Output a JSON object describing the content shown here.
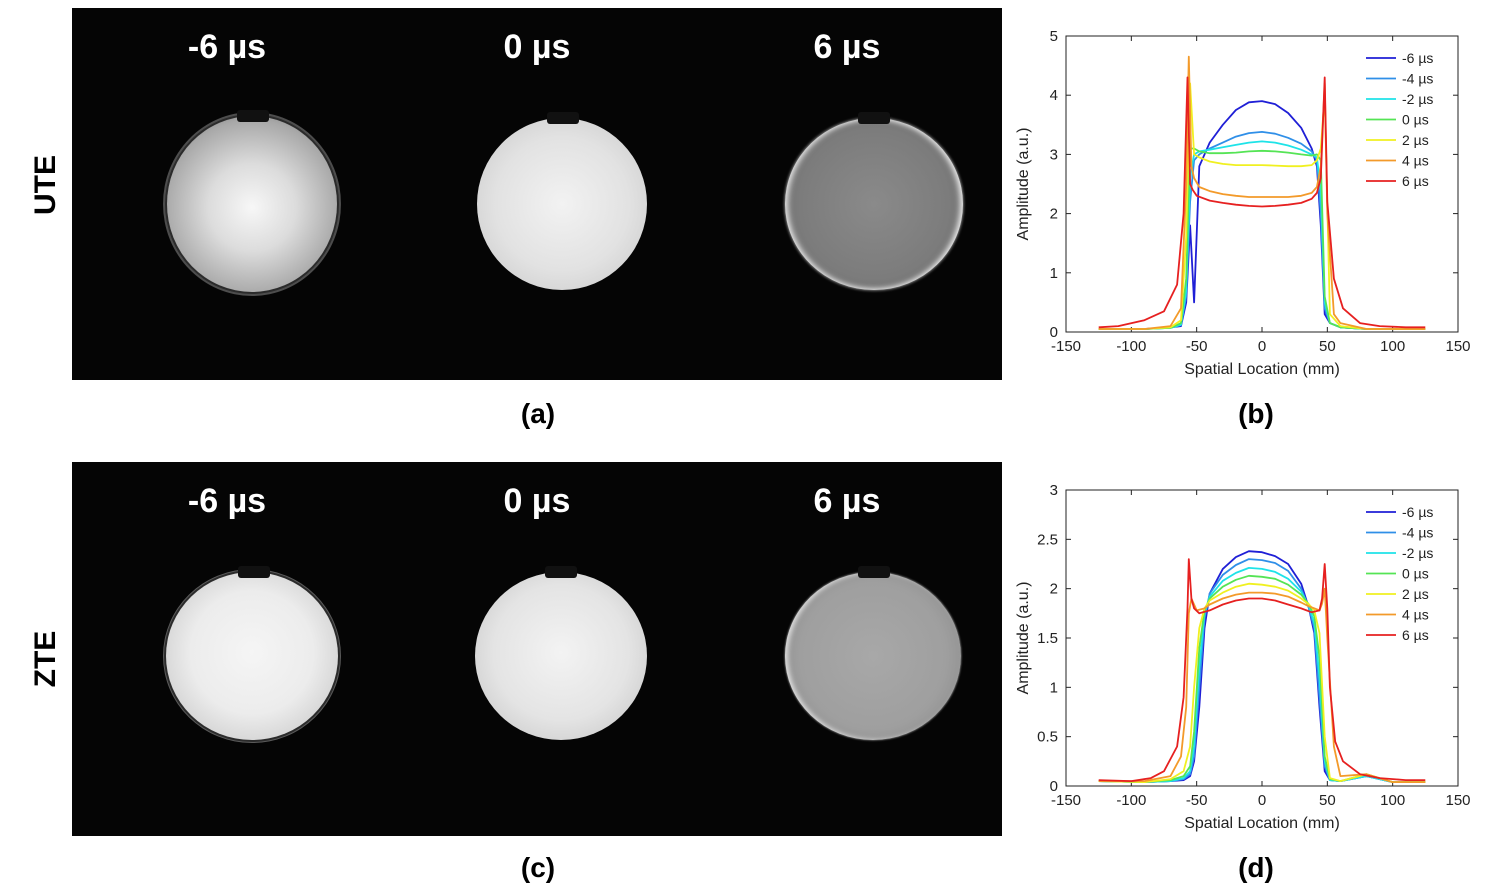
{
  "figure": {
    "rows": [
      {
        "label": "UTE",
        "caption": "(a)",
        "tiles": [
          {
            "label": "-6 µs"
          },
          {
            "label": "0 µs"
          },
          {
            "label": "6 µs"
          }
        ]
      },
      {
        "label": "ZTE",
        "caption": "(c)",
        "tiles": [
          {
            "label": "-6 µs"
          },
          {
            "label": "0 µs"
          },
          {
            "label": "6 µs"
          }
        ]
      }
    ],
    "chart_captions": [
      "(b)",
      "(d)"
    ]
  },
  "colors": {
    "-6": "#1f1fd6",
    "-4": "#2f8fe8",
    "-2": "#1ee3e8",
    "0": "#55e455",
    "2": "#f0f020",
    "4": "#f39a2a",
    "6": "#e62020"
  },
  "chart_data": [
    {
      "type": "line",
      "xlabel": "Spatial Location (mm)",
      "ylabel": "Amplitude (a.u.)",
      "xlim": [
        -150,
        150
      ],
      "ylim": [
        0,
        5
      ],
      "xticks": [
        -150,
        -100,
        -50,
        0,
        50,
        100,
        150
      ],
      "yticks": [
        0,
        1,
        2,
        3,
        4,
        5
      ],
      "legend": "top-right",
      "series": [
        {
          "name": "-6 µs",
          "color": "#1f1fd6",
          "x": [
            -125,
            -90,
            -70,
            -62,
            -58,
            -55,
            -52,
            -48,
            -40,
            -30,
            -20,
            -10,
            0,
            10,
            20,
            30,
            38,
            42,
            45,
            48,
            52,
            60,
            80,
            100,
            125
          ],
          "y": [
            0.05,
            0.05,
            0.08,
            0.1,
            0.5,
            1.8,
            0.5,
            2.8,
            3.2,
            3.5,
            3.75,
            3.88,
            3.9,
            3.85,
            3.7,
            3.45,
            3.1,
            2.8,
            1.8,
            0.3,
            0.15,
            0.08,
            0.05,
            0.05,
            0.05
          ]
        },
        {
          "name": "-4 µs",
          "color": "#2f8fe8",
          "x": [
            -125,
            -90,
            -70,
            -62,
            -58,
            -55,
            -52,
            -48,
            -40,
            -30,
            -20,
            -10,
            0,
            10,
            20,
            30,
            38,
            42,
            45,
            48,
            52,
            60,
            80,
            100,
            125
          ],
          "y": [
            0.05,
            0.05,
            0.07,
            0.12,
            0.6,
            2.2,
            2.9,
            3.0,
            3.1,
            3.2,
            3.3,
            3.36,
            3.38,
            3.35,
            3.28,
            3.18,
            3.05,
            2.9,
            2.0,
            0.4,
            0.15,
            0.08,
            0.05,
            0.05,
            0.05
          ]
        },
        {
          "name": "-2 µs",
          "color": "#1ee3e8",
          "x": [
            -125,
            -90,
            -70,
            -62,
            -58,
            -55,
            -52,
            -48,
            -40,
            -30,
            -20,
            -10,
            0,
            10,
            20,
            30,
            38,
            42,
            45,
            48,
            52,
            60,
            80,
            100,
            125
          ],
          "y": [
            0.05,
            0.05,
            0.07,
            0.12,
            0.7,
            2.6,
            3.0,
            3.05,
            3.08,
            3.12,
            3.16,
            3.2,
            3.22,
            3.2,
            3.15,
            3.08,
            3.0,
            2.95,
            2.4,
            0.5,
            0.15,
            0.08,
            0.05,
            0.05,
            0.05
          ]
        },
        {
          "name": "0 µs",
          "color": "#55e455",
          "x": [
            -125,
            -90,
            -70,
            -62,
            -58,
            -55,
            -52,
            -48,
            -40,
            -30,
            -20,
            -10,
            0,
            10,
            20,
            30,
            38,
            42,
            45,
            48,
            52,
            60,
            80,
            100,
            125
          ],
          "y": [
            0.05,
            0.05,
            0.07,
            0.15,
            0.9,
            3.1,
            3.1,
            3.05,
            3.02,
            3.02,
            3.03,
            3.05,
            3.06,
            3.05,
            3.03,
            3.0,
            2.98,
            3.0,
            2.9,
            0.6,
            0.15,
            0.08,
            0.05,
            0.05,
            0.05
          ]
        },
        {
          "name": "2 µs",
          "color": "#f0f020",
          "x": [
            -125,
            -90,
            -70,
            -62,
            -58,
            -55,
            -52,
            -48,
            -40,
            -30,
            -20,
            -10,
            0,
            10,
            20,
            30,
            38,
            42,
            45,
            48,
            52,
            60,
            80,
            100,
            125
          ],
          "y": [
            0.05,
            0.05,
            0.08,
            0.2,
            1.6,
            4.2,
            3.0,
            2.95,
            2.88,
            2.84,
            2.82,
            2.82,
            2.82,
            2.81,
            2.8,
            2.8,
            2.82,
            2.9,
            3.1,
            4.0,
            0.3,
            0.1,
            0.05,
            0.05,
            0.05
          ]
        },
        {
          "name": "4 µs",
          "color": "#f39a2a",
          "x": [
            -125,
            -90,
            -70,
            -62,
            -58,
            -56,
            -54,
            -52,
            -48,
            -40,
            -30,
            -20,
            -10,
            0,
            10,
            20,
            30,
            38,
            42,
            45,
            48,
            50,
            55,
            60,
            80,
            100,
            125
          ],
          "y": [
            0.05,
            0.05,
            0.1,
            0.4,
            2.5,
            4.65,
            2.8,
            2.6,
            2.45,
            2.38,
            2.33,
            2.3,
            2.28,
            2.28,
            2.28,
            2.28,
            2.3,
            2.35,
            2.45,
            2.8,
            4.2,
            2.0,
            0.3,
            0.15,
            0.05,
            0.05,
            0.05
          ]
        },
        {
          "name": "6 µs",
          "color": "#e62020",
          "x": [
            -125,
            -110,
            -90,
            -75,
            -65,
            -60,
            -57,
            -55,
            -53,
            -50,
            -40,
            -30,
            -20,
            -10,
            0,
            10,
            20,
            30,
            38,
            42,
            45,
            48,
            50,
            55,
            62,
            75,
            90,
            110,
            125
          ],
          "y": [
            0.08,
            0.1,
            0.2,
            0.35,
            0.8,
            2.0,
            4.3,
            2.5,
            2.4,
            2.3,
            2.22,
            2.18,
            2.15,
            2.13,
            2.12,
            2.13,
            2.15,
            2.18,
            2.25,
            2.35,
            2.6,
            4.3,
            2.2,
            0.9,
            0.4,
            0.15,
            0.1,
            0.08,
            0.08
          ]
        }
      ]
    },
    {
      "type": "line",
      "xlabel": "Spatial Location (mm)",
      "ylabel": "Amplitude (a.u.)",
      "xlim": [
        -150,
        150
      ],
      "ylim": [
        0,
        3
      ],
      "xticks": [
        -150,
        -100,
        -50,
        0,
        50,
        100,
        150
      ],
      "yticks": [
        0,
        0.5,
        1,
        1.5,
        2,
        2.5,
        3
      ],
      "legend": "top-right",
      "series": [
        {
          "name": "-6 µs",
          "color": "#1f1fd6",
          "x": [
            -125,
            -90,
            -70,
            -60,
            -55,
            -52,
            -48,
            -44,
            -40,
            -30,
            -20,
            -10,
            0,
            10,
            20,
            30,
            36,
            40,
            44,
            48,
            52,
            60,
            80,
            100,
            125
          ],
          "y": [
            0.05,
            0.04,
            0.05,
            0.06,
            0.1,
            0.25,
            0.8,
            1.6,
            1.95,
            2.2,
            2.32,
            2.38,
            2.37,
            2.33,
            2.25,
            2.05,
            1.8,
            1.55,
            0.8,
            0.15,
            0.06,
            0.05,
            0.1,
            0.04,
            0.04
          ]
        },
        {
          "name": "-4 µs",
          "color": "#2f8fe8",
          "x": [
            -125,
            -90,
            -70,
            -60,
            -55,
            -52,
            -48,
            -44,
            -40,
            -30,
            -20,
            -10,
            0,
            10,
            20,
            30,
            36,
            40,
            44,
            48,
            52,
            60,
            80,
            100,
            125
          ],
          "y": [
            0.05,
            0.04,
            0.05,
            0.07,
            0.12,
            0.3,
            1.0,
            1.7,
            1.95,
            2.14,
            2.24,
            2.3,
            2.29,
            2.26,
            2.18,
            2.0,
            1.8,
            1.6,
            0.9,
            0.2,
            0.06,
            0.05,
            0.1,
            0.04,
            0.04
          ]
        },
        {
          "name": "-2 µs",
          "color": "#1ee3e8",
          "x": [
            -125,
            -90,
            -70,
            -60,
            -55,
            -52,
            -48,
            -44,
            -40,
            -30,
            -20,
            -10,
            0,
            10,
            20,
            30,
            36,
            40,
            44,
            48,
            52,
            60,
            80,
            100,
            125
          ],
          "y": [
            0.05,
            0.04,
            0.05,
            0.08,
            0.15,
            0.4,
            1.2,
            1.75,
            1.92,
            2.08,
            2.16,
            2.21,
            2.2,
            2.17,
            2.1,
            1.97,
            1.82,
            1.65,
            1.1,
            0.25,
            0.06,
            0.05,
            0.1,
            0.04,
            0.04
          ]
        },
        {
          "name": "0 µs",
          "color": "#55e455",
          "x": [
            -125,
            -90,
            -70,
            -60,
            -55,
            -52,
            -48,
            -44,
            -40,
            -30,
            -20,
            -10,
            0,
            10,
            20,
            30,
            36,
            40,
            44,
            48,
            52,
            60,
            80,
            100,
            125
          ],
          "y": [
            0.05,
            0.04,
            0.06,
            0.1,
            0.2,
            0.55,
            1.4,
            1.78,
            1.9,
            2.02,
            2.09,
            2.13,
            2.12,
            2.1,
            2.04,
            1.94,
            1.84,
            1.72,
            1.3,
            0.3,
            0.07,
            0.05,
            0.12,
            0.04,
            0.04
          ]
        },
        {
          "name": "2 µs",
          "color": "#f0f020",
          "x": [
            -125,
            -90,
            -70,
            -60,
            -55,
            -52,
            -48,
            -44,
            -40,
            -30,
            -20,
            -10,
            0,
            10,
            20,
            30,
            36,
            40,
            44,
            48,
            52,
            60,
            80,
            100,
            125
          ],
          "y": [
            0.05,
            0.04,
            0.07,
            0.15,
            0.4,
            1.0,
            1.6,
            1.8,
            1.88,
            1.96,
            2.02,
            2.05,
            2.04,
            2.02,
            1.98,
            1.9,
            1.84,
            1.78,
            1.55,
            0.5,
            0.08,
            0.05,
            0.12,
            0.04,
            0.04
          ]
        },
        {
          "name": "4 µs",
          "color": "#f39a2a",
          "x": [
            -125,
            -90,
            -70,
            -62,
            -58,
            -56,
            -54,
            -50,
            -44,
            -40,
            -30,
            -20,
            -10,
            0,
            10,
            20,
            30,
            36,
            40,
            44,
            46,
            48,
            50,
            55,
            60,
            80,
            100,
            125
          ],
          "y": [
            0.05,
            0.05,
            0.1,
            0.3,
            0.8,
            1.75,
            1.9,
            1.78,
            1.8,
            1.84,
            1.9,
            1.94,
            1.96,
            1.96,
            1.95,
            1.92,
            1.86,
            1.82,
            1.8,
            1.78,
            1.85,
            2.0,
            1.5,
            0.4,
            0.1,
            0.12,
            0.04,
            0.04
          ]
        },
        {
          "name": "6 µs",
          "color": "#e62020",
          "x": [
            -125,
            -100,
            -85,
            -75,
            -65,
            -60,
            -57,
            -56,
            -54,
            -52,
            -48,
            -40,
            -30,
            -20,
            -10,
            0,
            10,
            20,
            30,
            38,
            44,
            46,
            48,
            50,
            52,
            56,
            62,
            75,
            90,
            110,
            125
          ],
          "y": [
            0.06,
            0.05,
            0.08,
            0.15,
            0.4,
            0.9,
            1.8,
            2.3,
            1.9,
            1.8,
            1.75,
            1.78,
            1.84,
            1.88,
            1.9,
            1.9,
            1.88,
            1.84,
            1.8,
            1.76,
            1.78,
            1.9,
            2.25,
            1.8,
            1.0,
            0.45,
            0.25,
            0.12,
            0.08,
            0.06,
            0.06
          ]
        }
      ]
    }
  ]
}
